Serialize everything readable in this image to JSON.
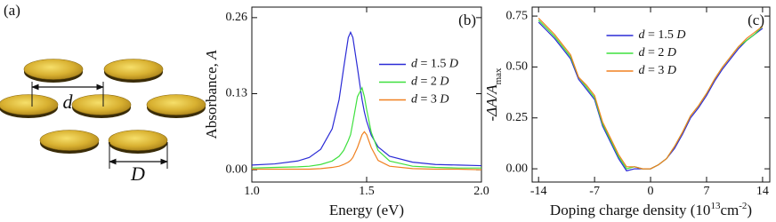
{
  "diagram": {
    "panel_label": "(a)",
    "spacing_label": "d",
    "diameter_label": "D"
  },
  "chart_data": [
    {
      "type": "line",
      "panel_label": "(b)",
      "x_label": "Energy (eV)",
      "y_label": "Absorbance, A",
      "xlim": [
        1.0,
        2.0
      ],
      "ylim": [
        -0.021,
        0.278
      ],
      "xticks": [
        {
          "value": 1,
          "label": "1.0"
        },
        {
          "value": 1.5,
          "label": "1.5"
        },
        {
          "value": 2,
          "label": "2.0"
        }
      ],
      "yticks": [
        {
          "value": 0,
          "label": "0.00"
        },
        0.13,
        0.26
      ],
      "legend": "center right",
      "x": [
        1.0,
        1.1,
        1.2,
        1.25,
        1.3,
        1.35,
        1.38,
        1.4,
        1.42,
        1.43,
        1.44,
        1.46,
        1.48,
        1.49,
        1.5,
        1.52,
        1.55,
        1.6,
        1.7,
        1.8,
        1.9,
        2.0
      ],
      "series": [
        {
          "name": "d = 1.5 D",
          "color": "#2b2bd6",
          "values": [
            0.008,
            0.01,
            0.015,
            0.021,
            0.035,
            0.07,
            0.12,
            0.174,
            0.226,
            0.235,
            0.226,
            0.174,
            0.12,
            0.099,
            0.083,
            0.059,
            0.039,
            0.023,
            0.013,
            0.009,
            0.008,
            0.007
          ]
        },
        {
          "name": "d = 2 D",
          "color": "#3ee03e",
          "values": [
            0.003,
            0.004,
            0.005,
            0.006,
            0.009,
            0.015,
            0.023,
            0.033,
            0.05,
            0.06,
            0.081,
            0.125,
            0.14,
            0.125,
            0.103,
            0.064,
            0.033,
            0.015,
            0.006,
            0.004,
            0.003,
            0.003
          ]
        },
        {
          "name": "d = 3 D",
          "color": "#f08020",
          "values": [
            0.001,
            0.001,
            0.001,
            0.001,
            0.002,
            0.004,
            0.006,
            0.009,
            0.013,
            0.016,
            0.021,
            0.038,
            0.06,
            0.065,
            0.06,
            0.038,
            0.016,
            0.006,
            0.002,
            0.001,
            0.001,
            0.0
          ]
        }
      ]
    },
    {
      "type": "line",
      "panel_label": "(c)",
      "x_label_parts": [
        {
          "text": "Doping charge density (10"
        },
        {
          "text": "13",
          "sup": true
        },
        {
          "text": "cm"
        },
        {
          "text": "-2",
          "sup": true
        },
        {
          "text": ")"
        }
      ],
      "y_label": "-ΔA/A",
      "y_label_subscript": "max",
      "xlim": [
        -14.8,
        14.9
      ],
      "ylim": [
        -0.065,
        0.794
      ],
      "xticks": [
        -14,
        -7,
        0,
        7,
        14
      ],
      "yticks": [
        {
          "value": 0,
          "label": "0.00"
        },
        0.25,
        {
          "value": 0.5,
          "label": "0.50"
        },
        0.75
      ],
      "legend": "upper center",
      "x": [
        -14,
        -13,
        -12,
        -11,
        -10,
        -9,
        -8,
        -7,
        -6,
        -5,
        -4,
        -3,
        -2,
        -1,
        0,
        1,
        2,
        3,
        4,
        5,
        6,
        7,
        8,
        9,
        10,
        11,
        12,
        13,
        14
      ],
      "series": [
        {
          "name": "d = 1.5 D",
          "color": "#2b2bd6",
          "values": [
            0.72,
            0.68,
            0.64,
            0.59,
            0.54,
            0.44,
            0.39,
            0.34,
            0.21,
            0.13,
            0.05,
            -0.01,
            0.0,
            0.0,
            0.0,
            0.02,
            0.05,
            0.1,
            0.17,
            0.25,
            0.3,
            0.36,
            0.43,
            0.49,
            0.54,
            0.59,
            0.63,
            0.66,
            0.69
          ]
        },
        {
          "name": "d = 2 D",
          "color": "#3ee03e",
          "values": [
            0.73,
            0.69,
            0.65,
            0.6,
            0.55,
            0.45,
            0.4,
            0.35,
            0.22,
            0.14,
            0.06,
            0.0,
            0.01,
            0.0,
            0.0,
            0.02,
            0.05,
            0.11,
            0.18,
            0.26,
            0.31,
            0.37,
            0.44,
            0.5,
            0.55,
            0.6,
            0.63,
            0.66,
            0.7
          ]
        },
        {
          "name": "d = 3 D",
          "color": "#f08020",
          "values": [
            0.74,
            0.7,
            0.66,
            0.61,
            0.56,
            0.45,
            0.41,
            0.36,
            0.23,
            0.15,
            0.07,
            0.01,
            0.01,
            0.0,
            0.0,
            0.02,
            0.05,
            0.11,
            0.18,
            0.26,
            0.31,
            0.37,
            0.44,
            0.5,
            0.55,
            0.6,
            0.64,
            0.67,
            0.7
          ]
        }
      ]
    }
  ]
}
